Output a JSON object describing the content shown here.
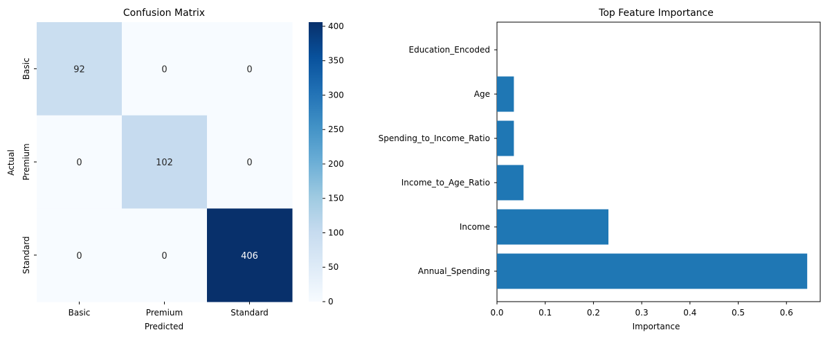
{
  "chart_data": [
    {
      "type": "heatmap",
      "title": "Confusion Matrix",
      "xlabel": "Predicted",
      "ylabel": "Actual",
      "x_categories": [
        "Basic",
        "Premium",
        "Standard"
      ],
      "y_categories": [
        "Basic",
        "Premium",
        "Standard"
      ],
      "values": [
        [
          92,
          0,
          0
        ],
        [
          0,
          102,
          0
        ],
        [
          0,
          0,
          406
        ]
      ],
      "colormap": "Blues",
      "colorbar": {
        "min": 0,
        "max": 406,
        "ticks": [
          0,
          50,
          100,
          150,
          200,
          250,
          300,
          350,
          400
        ]
      }
    },
    {
      "type": "bar",
      "orientation": "horizontal",
      "title": "Top Feature Importance",
      "xlabel": "Importance",
      "ylabel": "",
      "categories": [
        "Annual_Spending",
        "Income",
        "Income_to_Age_Ratio",
        "Spending_to_Income_Ratio",
        "Age",
        "Education_Encoded"
      ],
      "values": [
        0.643,
        0.231,
        0.055,
        0.035,
        0.035,
        0.0
      ],
      "xlim": [
        0,
        0.67
      ],
      "xticks": [
        0.0,
        0.1,
        0.2,
        0.3,
        0.4,
        0.5,
        0.6
      ],
      "bar_color": "#1f77b4",
      "grid": false
    }
  ]
}
